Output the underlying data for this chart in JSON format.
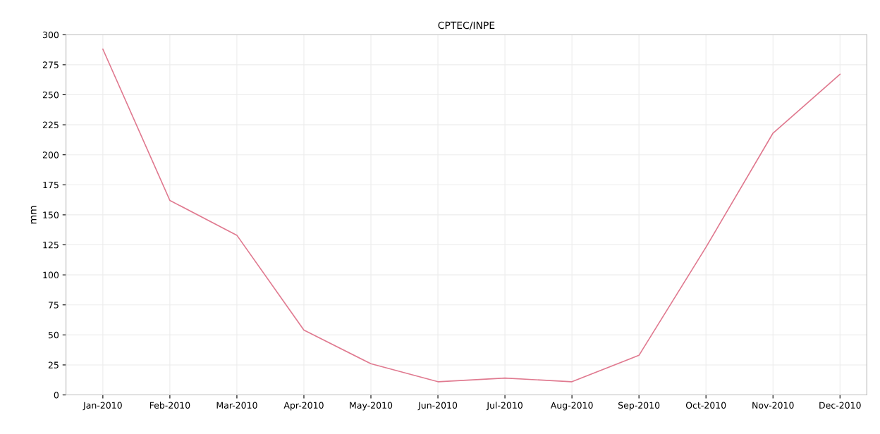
{
  "chart_data": {
    "type": "line",
    "title": "CPTEC/INPE",
    "ylabel": "mm",
    "categories": [
      "Jan-2010",
      "Feb-2010",
      "Mar-2010",
      "Apr-2010",
      "May-2010",
      "Jun-2010",
      "Jul-2010",
      "Aug-2010",
      "Sep-2010",
      "Oct-2010",
      "Nov-2010",
      "Dec-2010"
    ],
    "series": [
      {
        "color": "#e07a90",
        "values": [
          288,
          162,
          133,
          54,
          26,
          11,
          14,
          11,
          33,
          123,
          218,
          267
        ]
      }
    ],
    "ylim": [
      0,
      300
    ],
    "yticks": [
      0,
      25,
      50,
      75,
      100,
      125,
      150,
      175,
      200,
      225,
      250,
      275,
      300
    ],
    "grid": true,
    "marker": "none",
    "line_style": "solid"
  }
}
